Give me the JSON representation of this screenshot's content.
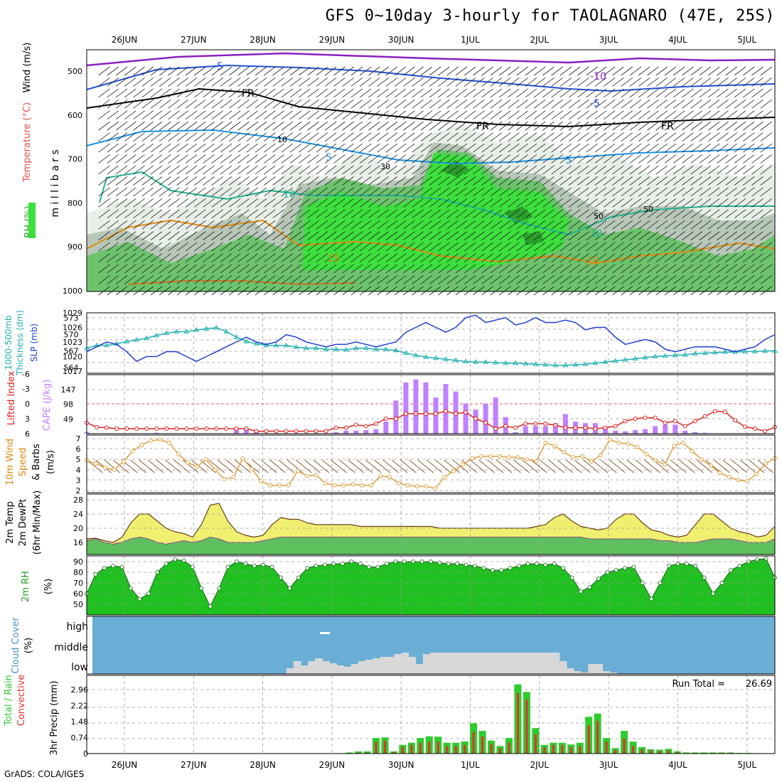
{
  "title": "GFS 0~10day 3-hourly for TAOLAGNARO (47E, 25S)",
  "credit": "GrADS: COLA/IGES",
  "dates": [
    "26JUN",
    "27JUN",
    "28JUN",
    "29JUN",
    "30JUN",
    "1JUL",
    "2JUL",
    "3JUL",
    "4JUL",
    "5JUL"
  ],
  "colors": {
    "rh_dark": "#1fa01f",
    "rh_light": "#00e000",
    "temp_line": "#ff8c00",
    "wind_iso": "#0050ff",
    "iso_fr": "#000000",
    "slp": "#1f3fcf",
    "thick": "#20b0b0",
    "cape": "#c080ff",
    "li": "#e02020",
    "wind_speed": "#e0a040",
    "cloud_bg": "#6aaed6",
    "cloud_low": "#d8d8d8",
    "precip_total": "#2ecc2e",
    "precip_conv": "#e53030"
  },
  "panels": {
    "upper": {
      "y_axis": "m i l l i b a r s",
      "labels": [
        "Wind (m/s)",
        "Temperature (°C)",
        "RH (%)"
      ],
      "ticks": [
        500,
        600,
        700,
        800,
        900,
        1000
      ],
      "contour_labels": [
        "-5",
        "-10",
        "-5",
        "FR",
        "FR",
        "FR",
        "5",
        "5",
        "10",
        "10",
        "15",
        "15",
        "30",
        "50",
        "50",
        "10"
      ]
    },
    "slp": {
      "labels": [
        "1000-500mb",
        "Thickness (dm)",
        "SLP (mb)"
      ],
      "left_ticks": [
        573,
        570,
        567,
        564
      ],
      "right_ticks": [
        1029,
        1026,
        1023,
        1020,
        1017
      ]
    },
    "cape": {
      "labels": [
        "Lifted Index",
        "CAPE (J/kg)"
      ],
      "left_ticks": [
        -6,
        -3,
        0,
        3,
        6
      ],
      "right_ticks": [
        147,
        98,
        49
      ]
    },
    "wind": {
      "labels": [
        "10m Wind",
        "Speed",
        "& Barbs",
        "(m/s)"
      ],
      "ticks": [
        7,
        6,
        5,
        4,
        3,
        2
      ]
    },
    "temp": {
      "labels": [
        "2m Temp",
        "2m DewPt",
        "(6hr Min/Max)"
      ],
      "ticks": [
        28,
        24,
        20,
        16
      ]
    },
    "rh": {
      "labels": [
        "2m RH",
        "(%)"
      ],
      "ticks": [
        90,
        80,
        70,
        60,
        50
      ]
    },
    "cloud": {
      "labels": [
        "Cloud Cover",
        "(%)"
      ],
      "levels": [
        "high",
        "middle",
        "low"
      ]
    },
    "precip": {
      "labels": [
        "Total / Rain",
        "Convective",
        "3hr Precip (mm)"
      ],
      "ticks": [
        2.96,
        2.22,
        1.48,
        0.74,
        0
      ],
      "run_total_label": "Run Total =",
      "run_total_value": "26.69"
    }
  },
  "chart_data": {
    "type": "line",
    "step_hours": 3,
    "start_date": "25JUN 12Z",
    "slp": [
      1021,
      1022,
      1023,
      1022.5,
      1021,
      1019,
      1020,
      1020,
      1021,
      1021,
      1020,
      1019,
      1020,
      1021,
      1022,
      1023,
      1024,
      1023,
      1022.5,
      1023,
      1024.5,
      1024,
      1023,
      1022.5,
      1022,
      1022.5,
      1022.5,
      1023,
      1022.5,
      1022,
      1022.5,
      1023,
      1025,
      1026,
      1027,
      1026,
      1025,
      1026,
      1028,
      1028.5,
      1027,
      1027.5,
      1028,
      1026.5,
      1027,
      1028,
      1027,
      1027,
      1027.5,
      1027,
      1025.5,
      1026,
      1026,
      1024,
      1022.5,
      1023,
      1023.5,
      1023,
      1021.5,
      1021,
      1021.5,
      1022,
      1022,
      1022,
      1021.5,
      1021,
      1021.5,
      1022,
      1023.5,
      1024.5
    ],
    "thickness": [
      567.5,
      568,
      568,
      568.3,
      568.7,
      569,
      569.3,
      569.8,
      570.2,
      570.5,
      570.5,
      570.8,
      571,
      571.2,
      570.5,
      569.5,
      568.7,
      568.3,
      568,
      568,
      568,
      567.7,
      567.5,
      567.5,
      567.3,
      567.3,
      567.2,
      567.5,
      567.5,
      567.3,
      567.3,
      567.1,
      566.6,
      566.2,
      565.9,
      565.7,
      565.5,
      565.3,
      565.1,
      565,
      565,
      564.9,
      564.8,
      564.8,
      564.7,
      564.6,
      564.5,
      564.4,
      564.4,
      564.5,
      564.6,
      564.8,
      565,
      565.2,
      565.4,
      565.6,
      565.8,
      566,
      566.1,
      566.2,
      566.3,
      566.5,
      566.6,
      566.7,
      566.8,
      566.8,
      566.9,
      566.9,
      567,
      567
    ],
    "cape": [
      5,
      0,
      0,
      0,
      0,
      0,
      0,
      3,
      0,
      0,
      0,
      0,
      0,
      0,
      0,
      18,
      18,
      8,
      0,
      0,
      0,
      0,
      0,
      0,
      0,
      5,
      10,
      10,
      12,
      15,
      40,
      110,
      170,
      180,
      170,
      120,
      165,
      140,
      100,
      80,
      100,
      120,
      55,
      5,
      25,
      25,
      25,
      35,
      65,
      40,
      35,
      35,
      20,
      10,
      8,
      12,
      15,
      25,
      30,
      30,
      10,
      5,
      3,
      0,
      0,
      0,
      0,
      0,
      0,
      0
    ],
    "lifted_index": [
      3.8,
      4.7,
      4.8,
      5,
      5,
      5,
      5,
      5,
      5,
      5,
      5,
      5,
      5,
      5,
      5,
      5,
      5,
      5.5,
      5.5,
      5.5,
      5.5,
      5.5,
      5.5,
      5.5,
      5.5,
      4.8,
      4.8,
      4.2,
      4.5,
      4,
      3,
      3,
      2,
      2,
      2,
      2,
      1.5,
      2,
      1.7,
      3,
      3.8,
      5,
      4.5,
      4.8,
      4,
      4,
      4,
      4.3,
      4.8,
      4.8,
      4.8,
      5,
      4.8,
      4.5,
      3.5,
      3,
      2.8,
      2.8,
      3.8,
      3.5,
      4.5,
      3.5,
      2.5,
      1.5,
      1.6,
      3.3,
      4.6,
      5,
      5.5,
      4.7
    ],
    "wind_speed": [
      4.9,
      4.6,
      4.2,
      4.0,
      4.8,
      5.8,
      6.4,
      6.8,
      6.9,
      6.6,
      5.5,
      4.7,
      4.3,
      5,
      4,
      3.1,
      3.3,
      5.1,
      4.1,
      2.9,
      2.5,
      2.5,
      2.5,
      3.9,
      3.4,
      3.5,
      2.7,
      2.5,
      2.5,
      2.6,
      2.5,
      2.5,
      3.4,
      3.3,
      2.7,
      2.5,
      2.4,
      2.4,
      2.2,
      3.3,
      3.9,
      4.5,
      5.1,
      5.3,
      5.3,
      5.3,
      5.2,
      5.2,
      5.0,
      4.8,
      6.6,
      6.3,
      5.7,
      5.2,
      5.3,
      4.8,
      5.4,
      6.9,
      6.6,
      6.5,
      6.2,
      5.5,
      4.9,
      4.5,
      6.3,
      6.6,
      5.8,
      5,
      4.4,
      3.7,
      3.3,
      3,
      2.9,
      3.6,
      4.6,
      5.1
    ],
    "temp_2m": [
      17,
      17.2,
      16.5,
      16,
      17.5,
      21.5,
      24,
      24,
      22,
      20,
      19,
      18.5,
      17.5,
      21,
      26.5,
      27,
      22,
      19,
      18,
      17.5,
      18,
      21,
      23,
      22.5,
      22.5,
      21.5,
      21,
      21,
      21,
      21,
      21,
      20.5,
      20.5,
      20.5,
      20.5,
      20.5,
      20.5,
      20.5,
      20.5,
      20.5,
      20,
      20,
      20,
      20,
      20,
      20,
      20,
      20,
      20,
      20,
      20,
      20.5,
      21,
      23,
      24,
      22,
      20.5,
      20,
      19.5,
      20,
      22.5,
      24,
      24,
      21.5,
      19.5,
      19,
      18,
      17.5,
      18,
      21,
      24,
      24,
      22,
      20,
      19,
      18.5,
      17.5,
      18,
      20.5
    ],
    "dewpt_2m": [
      16.5,
      17,
      16,
      15.5,
      16,
      17,
      17.5,
      17,
      16,
      15.5,
      16,
      16.5,
      16,
      16.5,
      17.5,
      17,
      16,
      16,
      16,
      16,
      16.5,
      17,
      17.5,
      17.5,
      17.5,
      17.5,
      17.5,
      17.5,
      17.5,
      17.5,
      17.5,
      17.5,
      17.5,
      17.5,
      17.5,
      17.5,
      17.5,
      17.5,
      17.5,
      17.5,
      17.5,
      17.5,
      17.5,
      17.5,
      17.5,
      17.5,
      17.5,
      17.5,
      17.5,
      17.5,
      17.5,
      17.5,
      17.5,
      17.5,
      17.5,
      17.5,
      17.5,
      17,
      17,
      17,
      17,
      17,
      17,
      17,
      17,
      16.5,
      16.5,
      16,
      16,
      16,
      16.5,
      17,
      17,
      17,
      16.5,
      16,
      16,
      16,
      17
    ],
    "rh_2m": [
      60,
      78,
      84,
      86,
      85,
      65,
      55,
      60,
      80,
      88,
      92,
      91,
      85,
      65,
      48,
      65,
      85,
      90,
      88,
      86,
      87,
      85,
      75,
      65,
      75,
      84,
      86,
      87,
      88,
      88,
      90,
      88,
      85,
      85,
      88,
      90,
      90,
      90,
      90,
      90,
      89,
      88,
      88,
      87,
      86,
      84,
      82,
      82,
      84,
      86,
      88,
      88,
      87,
      88,
      84,
      75,
      62,
      66,
      74,
      80,
      82,
      84,
      85,
      70,
      55,
      70,
      86,
      88,
      88,
      86,
      75,
      60,
      70,
      82,
      86,
      90,
      92,
      93,
      75
    ],
    "cloud_low": [
      0,
      0,
      0,
      0,
      0,
      0,
      0,
      0,
      0,
      0,
      0,
      0,
      0,
      0,
      0,
      0,
      0,
      0,
      0,
      0,
      0,
      0,
      0,
      0,
      0,
      0,
      0,
      8,
      18,
      12,
      18,
      22,
      18,
      15,
      12,
      10,
      14,
      18,
      20,
      22,
      24,
      24,
      28,
      30,
      24,
      14,
      28,
      30,
      30,
      30,
      30,
      30,
      30,
      30,
      30,
      30,
      30,
      30,
      30,
      30,
      30,
      30,
      30,
      30,
      30,
      18,
      8,
      4,
      2,
      14,
      14,
      4,
      2,
      0,
      0,
      0,
      0,
      0,
      0,
      0,
      0,
      0,
      0,
      0,
      0,
      0,
      0,
      0,
      0,
      0,
      0,
      0,
      0,
      0,
      0,
      0
    ],
    "precip_total": [
      0,
      0,
      0,
      0,
      0,
      0,
      0,
      0,
      0,
      0,
      0,
      0,
      0,
      0,
      0,
      0,
      0,
      0,
      0,
      0,
      0,
      0,
      0,
      0,
      0,
      0,
      0,
      0,
      0,
      0.05,
      0.1,
      0.1,
      0.72,
      0.75,
      0.1,
      0.4,
      0.5,
      0.72,
      0.8,
      0.78,
      0.5,
      0.5,
      0.56,
      1.4,
      1.05,
      0.6,
      0.35,
      0.72,
      3.2,
      2.85,
      1.18,
      0.4,
      0.5,
      0.5,
      0.42,
      0.5,
      1.7,
      1.85,
      0.72,
      0.25,
      1.05,
      0.55,
      0.3,
      0.2,
      0.18,
      0.22,
      0.1,
      0.05,
      0.05,
      0.05,
      0.05,
      0.05,
      0.05,
      0.03,
      0.03,
      0.02,
      0,
      0
    ],
    "precip_conv": [
      0,
      0,
      0,
      0,
      0,
      0,
      0,
      0,
      0,
      0,
      0,
      0,
      0,
      0,
      0,
      0,
      0,
      0,
      0,
      0,
      0,
      0,
      0,
      0,
      0,
      0,
      0,
      0,
      0,
      0.02,
      0.05,
      0.05,
      0.55,
      0.6,
      0.08,
      0.3,
      0.4,
      0.5,
      0.55,
      0.55,
      0.35,
      0.35,
      0.4,
      1.0,
      0.8,
      0.45,
      0.25,
      0.5,
      2.8,
      2.5,
      0.9,
      0.3,
      0.4,
      0.4,
      0.3,
      0.35,
      1.3,
      1.5,
      0.55,
      0.18,
      0.7,
      0.35,
      0.2,
      0.15,
      0.12,
      0.15,
      0.08,
      0.03,
      0.03,
      0.03,
      0.03,
      0.03,
      0.03,
      0.02,
      0.02,
      0.01,
      0,
      0
    ]
  }
}
